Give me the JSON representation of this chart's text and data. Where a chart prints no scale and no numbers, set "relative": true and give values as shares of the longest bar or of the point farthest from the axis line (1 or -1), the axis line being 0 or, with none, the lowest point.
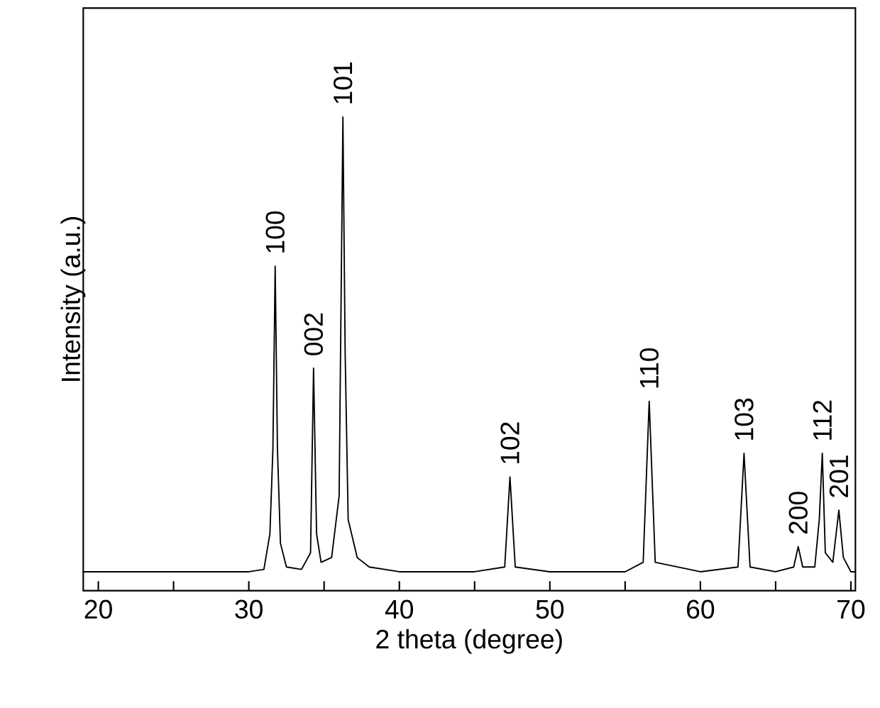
{
  "chart_data": {
    "type": "line",
    "xlabel": "2 theta (degree)",
    "ylabel": "Intensity (a.u.)",
    "relative": true,
    "color": "#000000",
    "xlim": [
      19,
      70.3
    ],
    "xticks": [
      20,
      {
        "value": 25,
        "label": null
      },
      30,
      {
        "value": 35,
        "label": null
      },
      40,
      {
        "value": 45,
        "label": null
      },
      50,
      {
        "value": 55,
        "label": null
      },
      60,
      {
        "value": 65,
        "label": null
      },
      70
    ],
    "x": [
      19,
      22,
      25,
      28,
      30,
      31.0,
      31.4,
      31.6,
      31.75,
      31.9,
      32.1,
      32.5,
      33.5,
      34.1,
      34.3,
      34.5,
      34.8,
      35.5,
      36.0,
      36.25,
      36.4,
      36.6,
      37.2,
      38,
      40,
      43,
      45,
      47.0,
      47.35,
      47.7,
      50,
      53,
      55,
      56.2,
      56.6,
      57.0,
      60,
      62.5,
      62.9,
      63.3,
      65,
      66.2,
      66.5,
      66.8,
      67.6,
      67.9,
      68.1,
      68.3,
      68.8,
      69.2,
      69.5,
      70,
      70.3
    ],
    "values": [
      0.04,
      0.04,
      0.04,
      0.04,
      0.04,
      0.045,
      0.12,
      0.3,
      0.685,
      0.3,
      0.1,
      0.05,
      0.045,
      0.08,
      0.47,
      0.12,
      0.06,
      0.07,
      0.2,
      1.0,
      0.5,
      0.15,
      0.07,
      0.05,
      0.04,
      0.04,
      0.04,
      0.05,
      0.24,
      0.05,
      0.04,
      0.04,
      0.04,
      0.06,
      0.4,
      0.06,
      0.04,
      0.05,
      0.29,
      0.05,
      0.04,
      0.05,
      0.093,
      0.05,
      0.05,
      0.15,
      0.29,
      0.08,
      0.06,
      0.17,
      0.07,
      0.04,
      0.04
    ],
    "annotations": [
      {
        "text": "100",
        "x": 31.75,
        "y": 0.685
      },
      {
        "text": "002",
        "x": 34.3,
        "y": 0.47
      },
      {
        "text": "101",
        "x": 36.25,
        "y": 1.0
      },
      {
        "text": "102",
        "x": 47.35,
        "y": 0.24
      },
      {
        "text": "110",
        "x": 56.6,
        "y": 0.4
      },
      {
        "text": "103",
        "x": 62.9,
        "y": 0.29
      },
      {
        "text": "200",
        "x": 66.5,
        "y": 0.093
      },
      {
        "text": "112",
        "x": 68.1,
        "y": 0.29
      },
      {
        "text": "201",
        "x": 69.2,
        "y": 0.17
      }
    ]
  }
}
